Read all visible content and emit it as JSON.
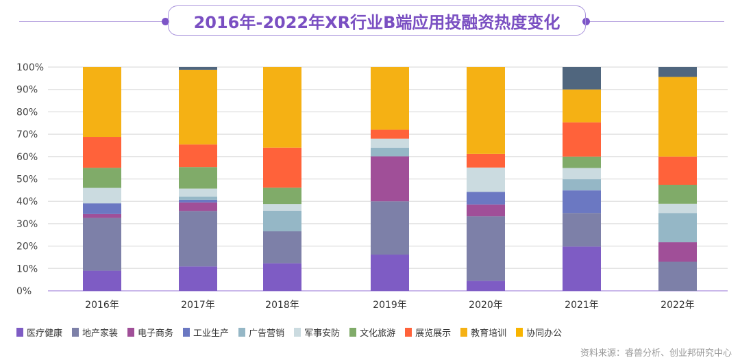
{
  "chart_data": {
    "type": "bar",
    "stacked": true,
    "title": "2016年-2022年XR行业B端应用投融资热度变化",
    "categories": [
      "2016年",
      "2017年",
      "2018年",
      "2019年",
      "2020年",
      "2021年",
      "2022年"
    ],
    "ylim": [
      0,
      100
    ],
    "yticks": [
      "0%",
      "10%",
      "20%",
      "30%",
      "40%",
      "50%",
      "60%",
      "70%",
      "80%",
      "90%",
      "100%"
    ],
    "grid": true,
    "legend_position": "bottom",
    "series": [
      {
        "name": "医疗健康",
        "color": "#7e5cc4",
        "values": [
          9.0,
          10.9,
          12.3,
          16.2,
          4.5,
          19.8,
          0
        ]
      },
      {
        "name": "地产家装",
        "color": "#7d80a8",
        "values": [
          23.6,
          24.8,
          14.3,
          23.8,
          28.8,
          15.0,
          13.0
        ]
      },
      {
        "name": "电子商务",
        "color": "#a04f98",
        "values": [
          1.7,
          3.8,
          0,
          20.1,
          5.3,
          0,
          8.7
        ]
      },
      {
        "name": "工业生产",
        "color": "#6b78c2",
        "values": [
          4.8,
          1.2,
          0,
          0,
          5.6,
          10.1,
          0
        ]
      },
      {
        "name": "广告营销",
        "color": "#95b7c6",
        "values": [
          0,
          1.4,
          9.2,
          3.9,
          0,
          5.0,
          13.1
        ]
      },
      {
        "name": "军事安防",
        "color": "#cbdbe0",
        "values": [
          6.9,
          3.6,
          3.0,
          4.0,
          10.9,
          5.0,
          4.1
        ]
      },
      {
        "name": "文化旅游",
        "color": "#80ab69",
        "values": [
          9.0,
          9.6,
          7.3,
          0,
          0,
          5.1,
          8.5
        ]
      },
      {
        "name": "展览展示",
        "color": "#ff623a",
        "values": [
          13.8,
          10.1,
          17.9,
          4.0,
          6.1,
          15.3,
          12.6
        ]
      },
      {
        "name": "教育培训",
        "color": "#f5b114",
        "values": [
          31.2,
          33.4,
          36.0,
          28.0,
          38.8,
          14.7,
          35.6
        ]
      },
      {
        "name": "协同办公",
        "color": "#50667e",
        "legend_color": "#f8b400",
        "values": [
          0,
          1.2,
          0,
          0,
          0,
          10.0,
          4.4
        ]
      }
    ]
  },
  "source": "资料来源：睿兽分析、创业邦研究中心"
}
